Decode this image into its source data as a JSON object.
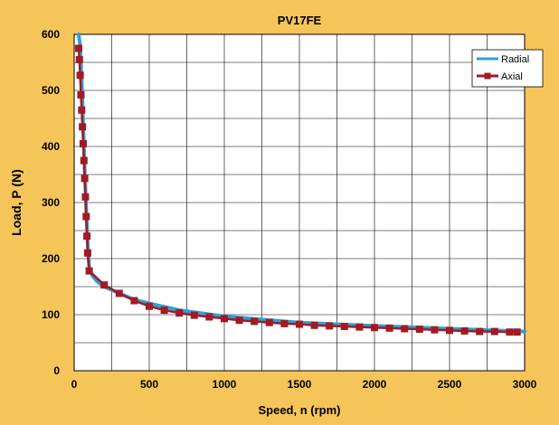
{
  "chart_data": {
    "type": "line",
    "title": "PV17FE",
    "xlabel": "Speed, n (rpm)",
    "ylabel": "Load, P (N)",
    "xlim": [
      0,
      3000
    ],
    "ylim": [
      0,
      600
    ],
    "xticks": [
      0,
      500,
      1000,
      1500,
      2000,
      2500,
      3000
    ],
    "yticks": [
      0,
      100,
      200,
      300,
      400,
      500,
      600
    ],
    "grid": true,
    "legend_position": "top-right",
    "series": [
      {
        "name": "Radial",
        "color": "#2e9fd8",
        "marker": "none",
        "x": [
          30,
          40,
          50,
          60,
          70,
          80,
          90,
          100,
          120,
          150,
          200,
          300,
          400,
          500,
          700,
          1000,
          1500,
          2000,
          2500,
          3000
        ],
        "y": [
          600,
          580,
          520,
          440,
          360,
          290,
          230,
          185,
          170,
          160,
          150,
          138,
          127,
          120,
          108,
          97,
          86,
          80,
          75,
          70
        ]
      },
      {
        "name": "Axial",
        "color": "#a01b24",
        "marker": "square",
        "x": [
          30,
          35,
          40,
          45,
          50,
          55,
          60,
          65,
          70,
          75,
          80,
          85,
          90,
          100,
          200,
          300,
          400,
          500,
          600,
          700,
          800,
          900,
          1000,
          1100,
          1200,
          1300,
          1400,
          1500,
          1600,
          1700,
          1800,
          1900,
          2000,
          2100,
          2200,
          2300,
          2400,
          2500,
          2600,
          2700,
          2800,
          2900,
          2950
        ],
        "y": [
          575,
          555,
          527,
          492,
          465,
          435,
          405,
          375,
          343,
          310,
          275,
          240,
          210,
          178,
          153,
          138,
          125,
          115,
          108,
          103,
          99,
          96,
          93,
          90,
          88,
          86,
          84,
          83,
          81,
          80,
          79,
          78,
          77,
          76,
          75,
          74,
          73,
          72,
          71,
          70,
          70,
          69,
          69
        ]
      }
    ]
  }
}
